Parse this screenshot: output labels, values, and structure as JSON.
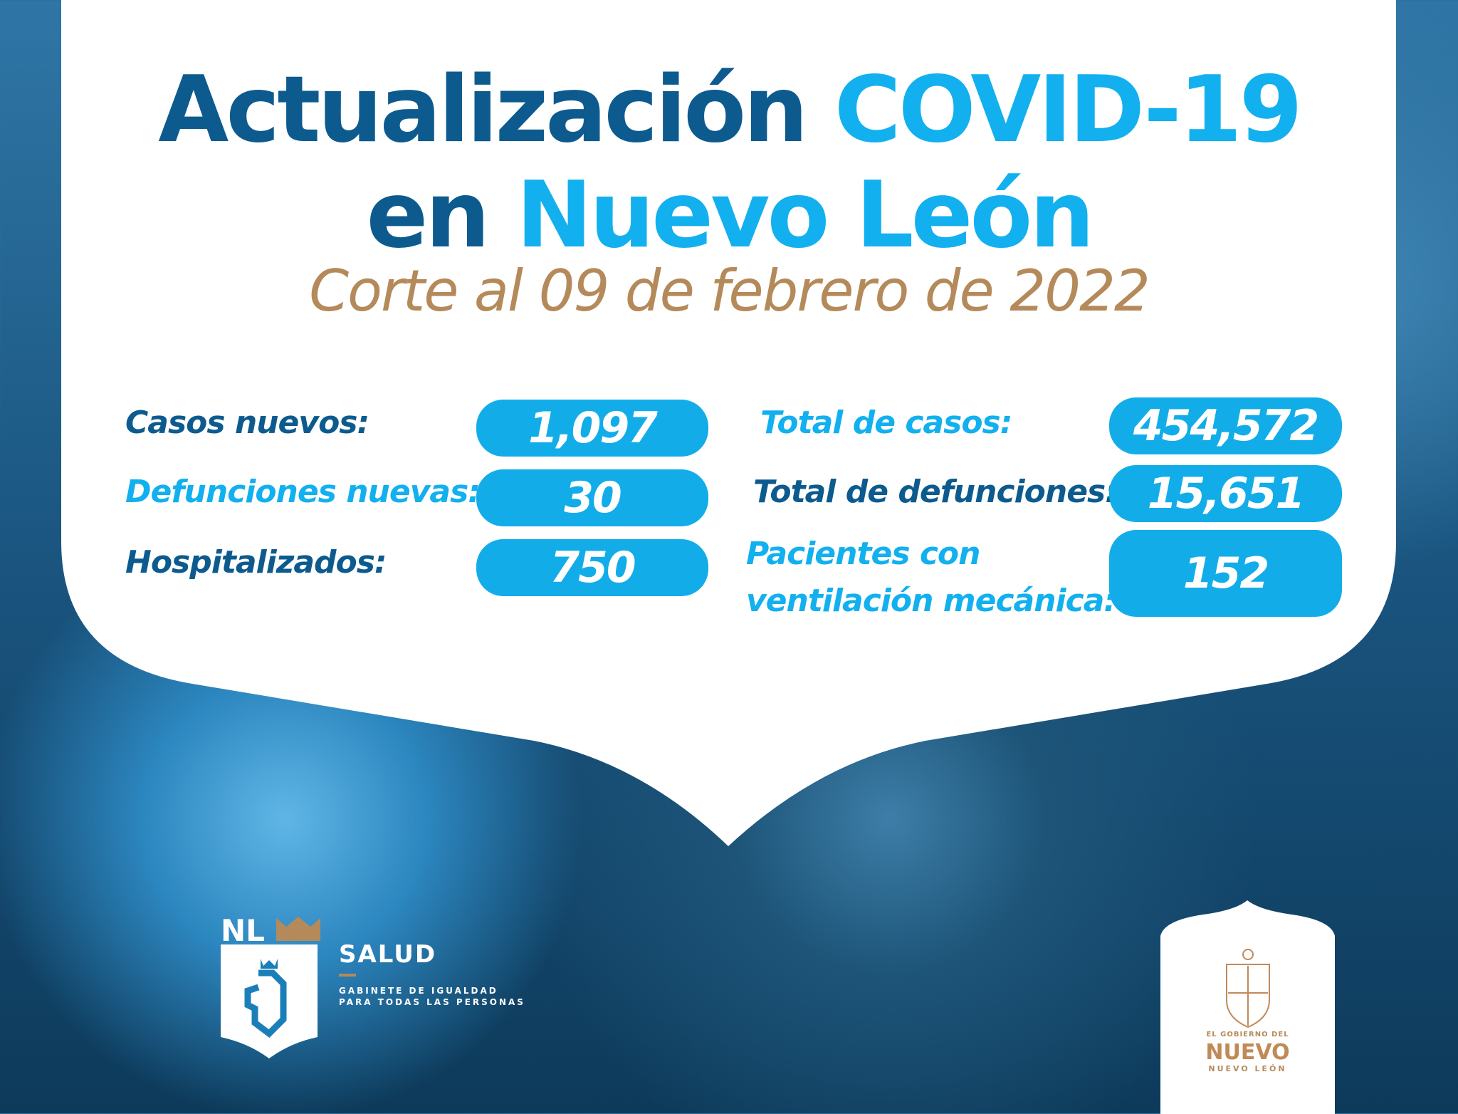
{
  "title": {
    "word1": "Actualización",
    "word2": "COVID-19",
    "word3": "en",
    "word4": "Nuevo León"
  },
  "subtitle": "Corte al 09 de febrero de 2022",
  "stats_left": [
    {
      "label": "Casos nuevos:",
      "value": "1,097"
    },
    {
      "label": "Defunciones nuevas:",
      "value": "30"
    },
    {
      "label": "Hospitalizados:",
      "value": "750"
    }
  ],
  "stats_right": [
    {
      "label": "Total de casos:",
      "value": "454,572"
    },
    {
      "label": "Total de defunciones:",
      "value": "15,651"
    },
    {
      "label_line1": "Pacientes con",
      "label_line2": "ventilación mecánica:",
      "value": "152"
    }
  ],
  "logo_salud": {
    "mark": "NL",
    "name": "SALUD",
    "line1": "GABINETE DE IGUALDAD",
    "line2": "PARA TODAS LAS PERSONAS"
  },
  "logo_gobierno": {
    "line1": "EL GOBIERNO DEL",
    "line2": "NUEVO",
    "line3": "NUEVO LEÓN"
  },
  "colors": {
    "dark_blue": "#0d5b8e",
    "light_blue": "#12b0ef",
    "gold": "#b58a5b"
  }
}
